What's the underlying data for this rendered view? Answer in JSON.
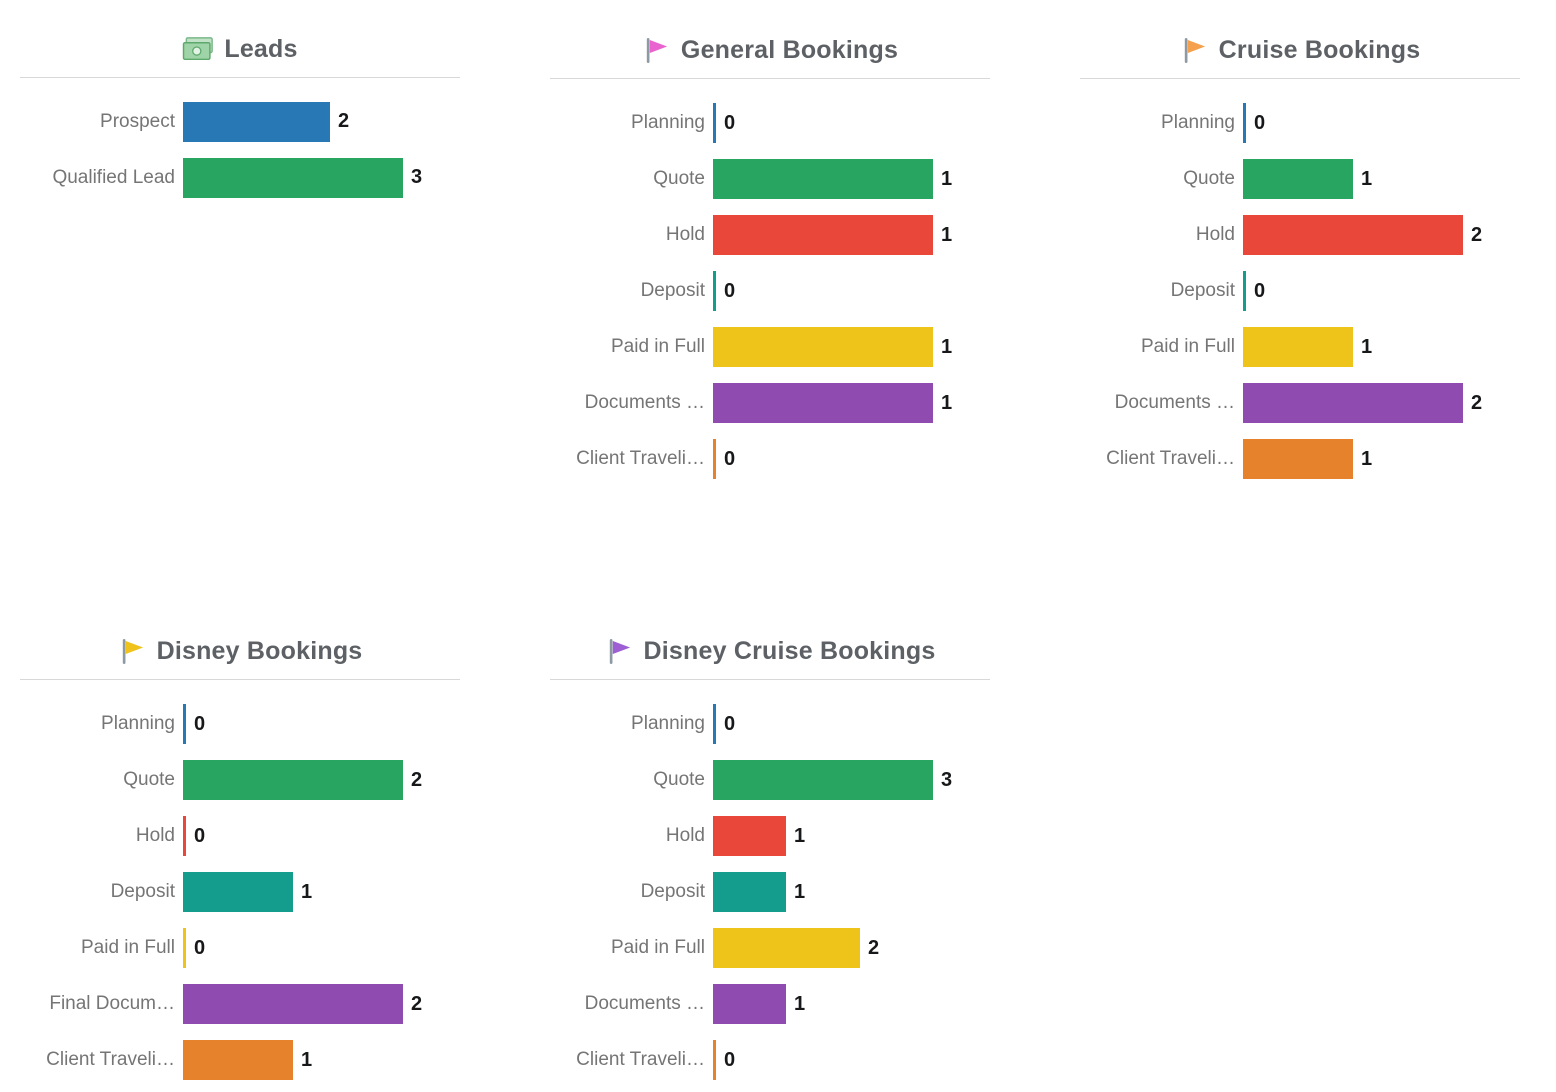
{
  "palette": {
    "blue": "#2878b5",
    "green": "#27a561",
    "red": "#e8473a",
    "teal": "#149c8c",
    "yellow": "#eec41b",
    "purple": "#8f4bb0",
    "orange": "#e6812c"
  },
  "text_colors": {
    "title": "#5d6165",
    "label": "#757575",
    "value": "#17181a"
  },
  "chart_data": [
    {
      "type": "bar",
      "orientation": "horizontal",
      "title": "Leads",
      "icon": "money-icon",
      "icon_color": "#9fd4a8",
      "categories": [
        "Prospect",
        "Qualified Lead"
      ],
      "values": [
        2,
        3
      ],
      "bar_colors": [
        "blue",
        "green"
      ],
      "xlim": [
        0,
        3
      ],
      "grid": false,
      "legend": "none"
    },
    {
      "type": "bar",
      "orientation": "horizontal",
      "title": "General Bookings",
      "icon": "flag-icon",
      "icon_color": "#e964cf",
      "categories": [
        "Planning",
        "Quote",
        "Hold",
        "Deposit",
        "Paid in Full",
        "Documents …",
        "Client Traveli…"
      ],
      "values": [
        0,
        1,
        1,
        0,
        1,
        1,
        0
      ],
      "bar_colors": [
        "blue",
        "green",
        "red",
        "teal",
        "yellow",
        "purple",
        "orange"
      ],
      "xlim": [
        0,
        1
      ],
      "grid": false,
      "legend": "none"
    },
    {
      "type": "bar",
      "orientation": "horizontal",
      "title": "Cruise Bookings",
      "icon": "flag-icon",
      "icon_color": "#f5a04c",
      "categories": [
        "Planning",
        "Quote",
        "Hold",
        "Deposit",
        "Paid in Full",
        "Documents …",
        "Client Traveli…"
      ],
      "values": [
        0,
        1,
        2,
        0,
        1,
        2,
        1
      ],
      "bar_colors": [
        "blue",
        "green",
        "red",
        "teal",
        "yellow",
        "purple",
        "orange"
      ],
      "xlim": [
        0,
        2
      ],
      "grid": false,
      "legend": "none"
    },
    {
      "type": "bar",
      "orientation": "horizontal",
      "title": "Disney Bookings",
      "icon": "flag-icon",
      "icon_color": "#efc31c",
      "categories": [
        "Planning",
        "Quote",
        "Hold",
        "Deposit",
        "Paid in Full",
        "Final Docum…",
        "Client Traveli…"
      ],
      "values": [
        0,
        2,
        0,
        1,
        0,
        2,
        1
      ],
      "bar_colors": [
        "blue",
        "green",
        "red",
        "teal",
        "yellow",
        "purple",
        "orange"
      ],
      "xlim": [
        0,
        2
      ],
      "grid": false,
      "legend": "none"
    },
    {
      "type": "bar",
      "orientation": "horizontal",
      "title": "Disney Cruise Bookings",
      "icon": "flag-icon",
      "icon_color": "#9d5fd3",
      "categories": [
        "Planning",
        "Quote",
        "Hold",
        "Deposit",
        "Paid in Full",
        "Documents …",
        "Client Traveli…"
      ],
      "values": [
        0,
        3,
        1,
        1,
        2,
        1,
        0
      ],
      "bar_colors": [
        "blue",
        "green",
        "red",
        "teal",
        "yellow",
        "purple",
        "orange"
      ],
      "xlim": [
        0,
        3
      ],
      "grid": false,
      "legend": "none"
    }
  ]
}
